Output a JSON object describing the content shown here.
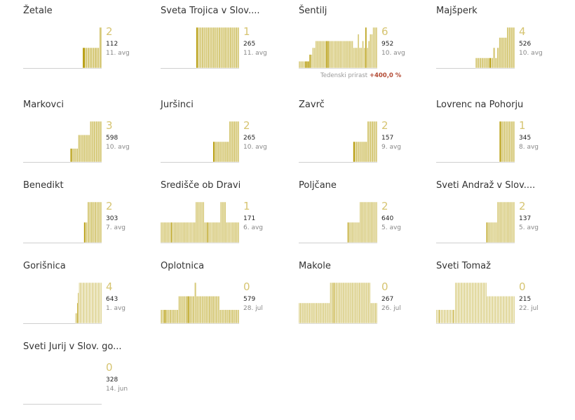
{
  "colors": {
    "bar": "#d6c979",
    "bar_dark": "#b89e10",
    "bar_edge": "#ffffff",
    "baseline": "#cfcfcf"
  },
  "chart_data": [
    {
      "name": "Žetale",
      "value": "2",
      "count": "112",
      "date": "11. avg",
      "type": "bar",
      "bars": [
        0,
        0,
        0,
        0,
        0,
        0,
        0,
        0,
        0,
        0,
        0,
        0,
        0,
        0,
        0,
        0,
        0,
        0,
        0,
        0,
        0,
        0,
        0,
        0,
        0,
        1,
        1,
        1,
        1,
        1,
        1,
        1,
        2
      ],
      "highlight": [
        25
      ]
    },
    {
      "name": "Sveta Trojica v Slov....",
      "value": "1",
      "count": "265",
      "date": "11. avg",
      "type": "bar",
      "bars": [
        0,
        0,
        0,
        0,
        0,
        0,
        0,
        0,
        0,
        0,
        0,
        0,
        0,
        0,
        0,
        0,
        0,
        0,
        0,
        1,
        1,
        1,
        1,
        1,
        1,
        1,
        1,
        1,
        1,
        1,
        1,
        1,
        1,
        1,
        1,
        1,
        1,
        1,
        1,
        1,
        1,
        1
      ],
      "highlight": [
        19
      ]
    },
    {
      "name": "Šentilj",
      "value": "6",
      "count": "952",
      "date": "10. avg",
      "type": "bar",
      "bars": [
        1,
        1,
        1,
        1,
        1,
        1,
        1,
        2,
        2,
        3,
        3,
        4,
        4,
        4,
        4,
        4,
        4,
        4,
        4,
        4,
        4,
        4,
        4,
        4,
        4,
        4,
        4,
        4,
        4,
        4,
        4,
        4,
        4,
        4,
        4,
        4,
        3,
        3,
        3,
        5,
        3,
        3,
        4,
        3,
        6,
        3,
        4,
        5,
        5,
        6,
        6,
        6
      ],
      "highlight": [
        4,
        5,
        6,
        7,
        18,
        19,
        44
      ],
      "note": "Tedenski prirast",
      "note_value": "+400,0 %"
    },
    {
      "name": "Majšperk",
      "value": "4",
      "count": "526",
      "date": "10. avg",
      "type": "bar",
      "bars": [
        0,
        0,
        0,
        0,
        0,
        0,
        0,
        0,
        0,
        0,
        0,
        0,
        0,
        0,
        0,
        0,
        0,
        0,
        0,
        0,
        1,
        1,
        1,
        1,
        1,
        1,
        1,
        1,
        1,
        2,
        1,
        2,
        3,
        3,
        3,
        3,
        4,
        4,
        4,
        4
      ],
      "highlight": [
        27
      ]
    },
    {
      "name": "Markovci",
      "value": "3",
      "count": "598",
      "date": "10. avg",
      "type": "bar",
      "bars": [
        0,
        0,
        0,
        0,
        0,
        0,
        0,
        0,
        0,
        0,
        0,
        0,
        0,
        0,
        0,
        0,
        0,
        0,
        0,
        0,
        0,
        0,
        0,
        0,
        1,
        1,
        1,
        1,
        2,
        2,
        2,
        2,
        2,
        2,
        3,
        3,
        3,
        3,
        3,
        3
      ],
      "highlight": [
        24
      ]
    },
    {
      "name": "Juršinci",
      "value": "2",
      "count": "265",
      "date": "10. avg",
      "type": "bar",
      "bars": [
        0,
        0,
        0,
        0,
        0,
        0,
        0,
        0,
        0,
        0,
        0,
        0,
        0,
        0,
        0,
        0,
        0,
        0,
        0,
        0,
        0,
        0,
        0,
        0,
        0,
        0,
        1,
        1,
        1,
        1,
        1,
        1,
        1,
        1,
        2,
        2,
        2,
        2,
        2
      ],
      "highlight": [
        26
      ]
    },
    {
      "name": "Zavrč",
      "value": "2",
      "count": "157",
      "date": "9. avg",
      "type": "bar",
      "bars": [
        0,
        0,
        0,
        0,
        0,
        0,
        0,
        0,
        0,
        0,
        0,
        0,
        0,
        0,
        0,
        0,
        0,
        0,
        0,
        0,
        0,
        0,
        0,
        0,
        0,
        0,
        0,
        1,
        1,
        1,
        1,
        1,
        1,
        1,
        2,
        2,
        2,
        2,
        2
      ],
      "highlight": [
        27
      ]
    },
    {
      "name": "Lovrenc na Pohorju",
      "value": "1",
      "count": "345",
      "date": "8. avg",
      "type": "bar",
      "bars": [
        0,
        0,
        0,
        0,
        0,
        0,
        0,
        0,
        0,
        0,
        0,
        0,
        0,
        0,
        0,
        0,
        0,
        0,
        0,
        0,
        0,
        0,
        0,
        0,
        0,
        0,
        0,
        0,
        0,
        0,
        0,
        0,
        0,
        1,
        1,
        1,
        1,
        1,
        1,
        1,
        1
      ],
      "highlight": [
        33
      ]
    },
    {
      "name": "Benedikt",
      "value": "2",
      "count": "303",
      "date": "7. avg",
      "type": "bar",
      "bars": [
        0,
        0,
        0,
        0,
        0,
        0,
        0,
        0,
        0,
        0,
        0,
        0,
        0,
        0,
        0,
        0,
        0,
        0,
        0,
        0,
        0,
        0,
        0,
        0,
        0,
        0,
        0,
        0,
        0,
        0,
        0,
        0,
        0,
        0,
        1,
        1,
        2,
        2,
        2,
        2,
        2,
        2,
        2,
        2
      ],
      "highlight": [
        34
      ]
    },
    {
      "name": "Središče ob Dravi",
      "value": "1",
      "count": "171",
      "date": "6. avg",
      "type": "bar",
      "bars": [
        1,
        1,
        1,
        1,
        1,
        1,
        1,
        1,
        1,
        1,
        1,
        1,
        1,
        1,
        1,
        1,
        1,
        1,
        1,
        1,
        1,
        1,
        1,
        1,
        2,
        2,
        2,
        2,
        2,
        2,
        1,
        1,
        1,
        1,
        1,
        1,
        1,
        1,
        1,
        1,
        1,
        2,
        2,
        2,
        2,
        1,
        1,
        1,
        1,
        1,
        1,
        1,
        1,
        1
      ],
      "highlight": [
        7,
        32
      ]
    },
    {
      "name": "Poljčane",
      "value": "2",
      "count": "640",
      "date": "5. avg",
      "type": "bar",
      "bars": [
        0,
        0,
        0,
        0,
        0,
        0,
        0,
        0,
        0,
        0,
        0,
        0,
        0,
        0,
        0,
        0,
        0,
        0,
        0,
        0,
        0,
        0,
        0,
        0,
        0,
        0,
        0,
        0,
        0,
        0,
        0,
        0,
        0,
        0,
        0,
        0,
        1,
        1,
        1,
        1,
        1,
        1,
        1,
        1,
        1,
        2,
        2,
        2,
        2,
        2,
        2,
        2,
        2,
        2,
        2,
        2,
        2,
        2
      ],
      "highlight": [
        36
      ]
    },
    {
      "name": "Sveti Andraž v Slov....",
      "value": "2",
      "count": "137",
      "date": "5. avg",
      "type": "bar",
      "bars": [
        0,
        0,
        0,
        0,
        0,
        0,
        0,
        0,
        0,
        0,
        0,
        0,
        0,
        0,
        0,
        0,
        0,
        0,
        0,
        0,
        0,
        0,
        0,
        0,
        0,
        0,
        0,
        0,
        0,
        0,
        0,
        0,
        0,
        0,
        0,
        0,
        0,
        1,
        1,
        1,
        1,
        1,
        1,
        1,
        1,
        2,
        2,
        2,
        2,
        2,
        2,
        2,
        2,
        2,
        2,
        2,
        2,
        2
      ],
      "highlight": [
        37
      ]
    },
    {
      "name": "Gorišnica",
      "value": "4",
      "count": "643",
      "date": "1. avg",
      "type": "bar",
      "bars": [
        0,
        0,
        0,
        0,
        0,
        0,
        0,
        0,
        0,
        0,
        0,
        0,
        0,
        0,
        0,
        0,
        0,
        0,
        0,
        0,
        0,
        0,
        0,
        0,
        0,
        0,
        0,
        0,
        0,
        0,
        0,
        0,
        0,
        0,
        0,
        0,
        0,
        0,
        0,
        0,
        0,
        0,
        0,
        0,
        0,
        0,
        0,
        0,
        0,
        0,
        0,
        0,
        0,
        0,
        0,
        0,
        0,
        1,
        1,
        2,
        3,
        4,
        4,
        4,
        4,
        4,
        4,
        4,
        4,
        4,
        4,
        4,
        4,
        4,
        4,
        4,
        4,
        4,
        4,
        4,
        4,
        4,
        4,
        4,
        4,
        4
      ],
      "highlight": [
        58,
        59,
        60
      ]
    },
    {
      "name": "Oplotnica",
      "value": "0",
      "count": "579",
      "date": "28. jul",
      "type": "bar",
      "bars": [
        1,
        1,
        1,
        1,
        1,
        1,
        1,
        1,
        1,
        1,
        2,
        2,
        2,
        2,
        2,
        2,
        2,
        2,
        2,
        3,
        2,
        2,
        2,
        2,
        2,
        2,
        2,
        2,
        2,
        2,
        2,
        2,
        2,
        1,
        1,
        1,
        1,
        1,
        1,
        1,
        1,
        1,
        1,
        1
      ],
      "highlight": [
        2,
        15
      ]
    },
    {
      "name": "Makole",
      "value": "0",
      "count": "267",
      "date": "26. jul",
      "type": "bar",
      "bars": [
        1,
        1,
        1,
        1,
        1,
        1,
        1,
        1,
        1,
        1,
        1,
        1,
        1,
        1,
        1,
        1,
        1,
        1,
        1,
        1,
        1,
        1,
        1,
        1,
        1,
        1,
        1,
        2,
        2,
        2,
        2,
        2,
        2,
        2,
        2,
        2,
        2,
        2,
        2,
        2,
        2,
        2,
        2,
        2,
        2,
        2,
        2,
        2,
        2,
        2,
        2,
        2,
        2,
        2,
        2,
        2,
        2,
        2,
        2,
        2,
        2,
        2,
        1,
        1,
        1,
        1,
        1,
        1
      ],
      "highlight": [
        30
      ]
    },
    {
      "name": "Sveti Tomaž",
      "value": "0",
      "count": "215",
      "date": "22. jul",
      "type": "bar",
      "bars": [
        1,
        1,
        1,
        1,
        1,
        1,
        1,
        1,
        1,
        1,
        1,
        1,
        1,
        1,
        1,
        1,
        1,
        1,
        1,
        1,
        3,
        3,
        3,
        3,
        3,
        3,
        3,
        3,
        3,
        3,
        3,
        3,
        3,
        3,
        3,
        3,
        3,
        3,
        3,
        3,
        3,
        3,
        3,
        3,
        3,
        3,
        3,
        3,
        3,
        3,
        3,
        3,
        3,
        3,
        2,
        2,
        2,
        2,
        2,
        2,
        2,
        2,
        2,
        2,
        2,
        2,
        2,
        2,
        2,
        2,
        2,
        2,
        2,
        2,
        2,
        2,
        2,
        2,
        2,
        2,
        2,
        2,
        2,
        2
      ],
      "highlight": [
        3,
        18
      ]
    },
    {
      "name": "Sveti Jurij v Slov. go...",
      "value": "0",
      "count": "328",
      "date": "14. jun",
      "type": "bar",
      "bars": [],
      "highlight": []
    }
  ]
}
